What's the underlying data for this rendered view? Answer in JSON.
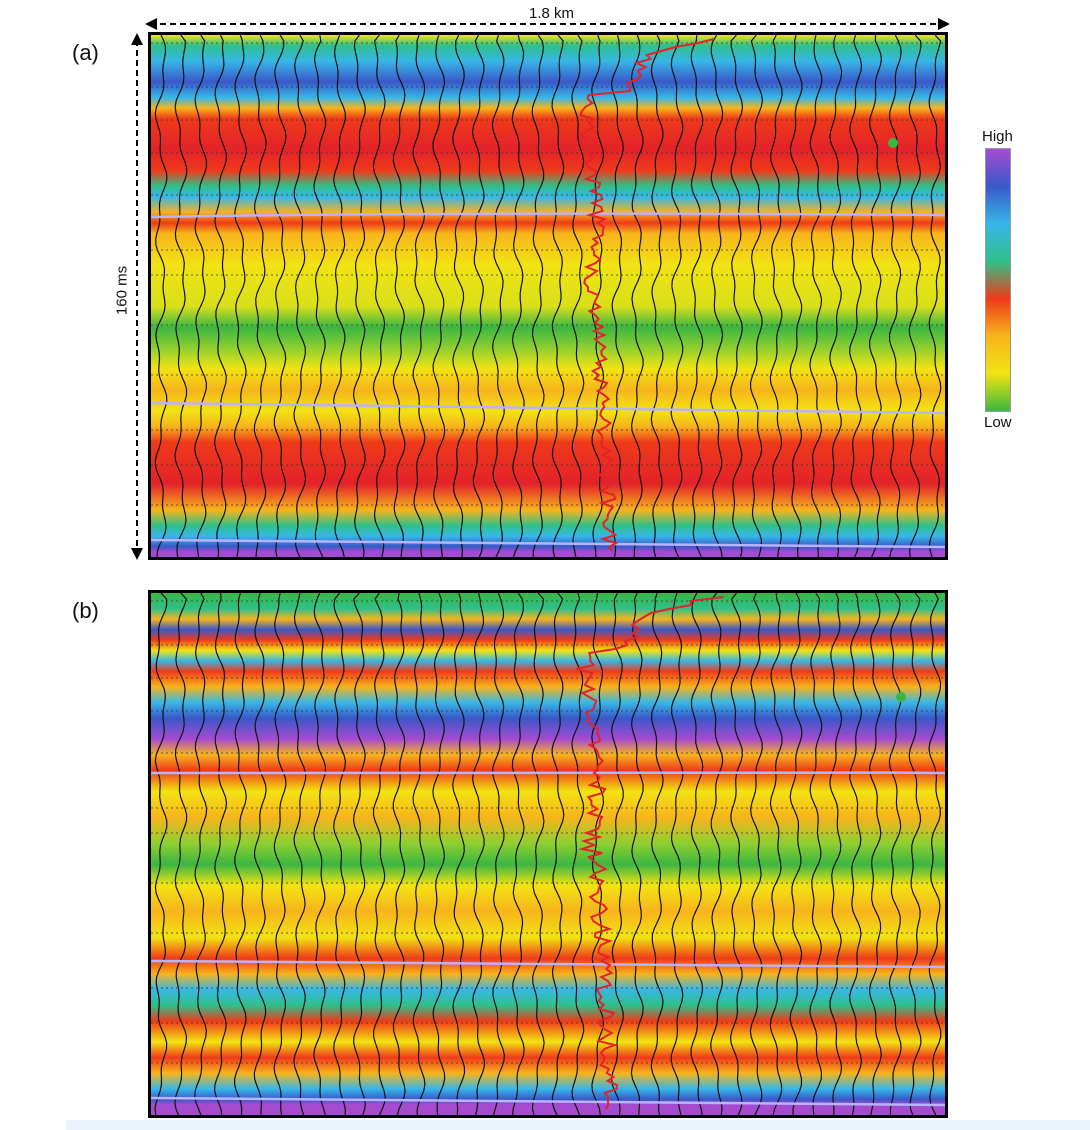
{
  "figure": {
    "horizontal_scale_label": "1.8 km",
    "vertical_scale_label": "160 ms",
    "panels": [
      {
        "label": "(a)"
      },
      {
        "label": "(b)"
      }
    ],
    "legend": {
      "high_label": "High",
      "low_label": "Low",
      "colors_top_to_bottom": [
        "#a54bd0",
        "#3a58c8",
        "#37b7e8",
        "#2fc08a",
        "#ef3a1a",
        "#f7b41c",
        "#f2e313",
        "#3cb642"
      ]
    },
    "colors": {
      "log_trace": "#e3222a",
      "horizon": "#b8b2ff",
      "wiggle": "#111111"
    }
  }
}
